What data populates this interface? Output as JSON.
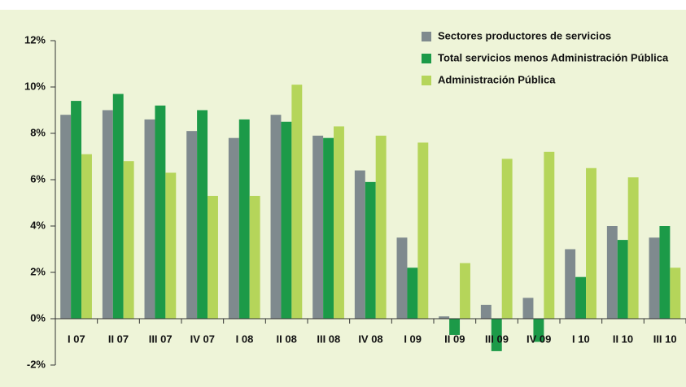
{
  "chart_data": {
    "type": "bar",
    "categories": [
      "I 07",
      "II 07",
      "III 07",
      "IV 07",
      "I 08",
      "II 08",
      "III 08",
      "IV 08",
      "I 09",
      "II 09",
      "III 09",
      "IV 09",
      "I 10",
      "II 10",
      "III 10"
    ],
    "series": [
      {
        "name": "Sectores productores de servicios",
        "color": "#7f8a8e",
        "values": [
          8.8,
          9.0,
          8.6,
          8.1,
          7.8,
          8.8,
          7.9,
          6.4,
          3.5,
          0.1,
          0.6,
          0.9,
          3.0,
          4.0,
          3.5
        ]
      },
      {
        "name": "Total servicios menos Administración Pública",
        "color": "#1c9a48",
        "values": [
          9.4,
          9.7,
          9.2,
          9.0,
          8.6,
          8.5,
          7.8,
          5.9,
          2.2,
          -0.7,
          -1.4,
          -1.0,
          1.8,
          3.4,
          4.0
        ]
      },
      {
        "name": "Administración Pública",
        "color": "#b5d55a",
        "values": [
          7.1,
          6.8,
          6.3,
          5.3,
          5.3,
          10.1,
          8.3,
          7.9,
          7.6,
          2.4,
          6.9,
          7.2,
          6.5,
          6.1,
          2.2
        ]
      }
    ],
    "ylim": [
      -2,
      12
    ],
    "yticks": [
      {
        "value": -2,
        "label": "-2%"
      },
      {
        "value": 0,
        "label": "0%"
      },
      {
        "value": 2,
        "label": "2%"
      },
      {
        "value": 4,
        "label": "4%"
      },
      {
        "value": 6,
        "label": "6%"
      },
      {
        "value": 8,
        "label": "8%"
      },
      {
        "value": 10,
        "label": "10%"
      },
      {
        "value": 12,
        "label": "12%"
      }
    ],
    "legend": "top-right"
  }
}
